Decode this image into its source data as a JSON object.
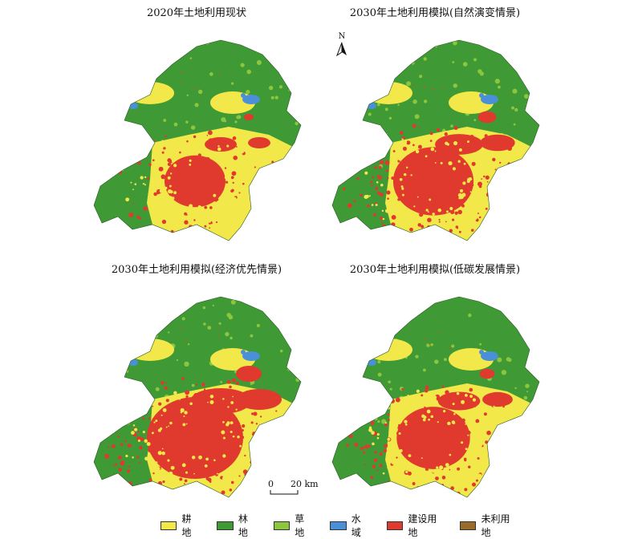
{
  "panels": [
    {
      "title": "2020年土地利用现状",
      "urban_level": 0.0
    },
    {
      "title": "2030年土地利用模拟(自然演变情景)",
      "urban_level": 0.55
    },
    {
      "title": "2030年土地利用模拟(经济优先情景)",
      "urban_level": 1.0
    },
    {
      "title": "2030年土地利用模拟(低碳发展情景)",
      "urban_level": 0.35
    }
  ],
  "north_arrow": {
    "label": "N"
  },
  "scale_bar": {
    "left_label": "0",
    "right_label": "20 km"
  },
  "legend": [
    {
      "label": "耕地",
      "color": "#f2e84a"
    },
    {
      "label": "林地",
      "color": "#3f9a35"
    },
    {
      "label": "草地",
      "color": "#8cc63f"
    },
    {
      "label": "水域",
      "color": "#4a90d9"
    },
    {
      "label": "建设用地",
      "color": "#e03a2f"
    },
    {
      "label": "未利用地",
      "color": "#9a6a2a"
    }
  ]
}
